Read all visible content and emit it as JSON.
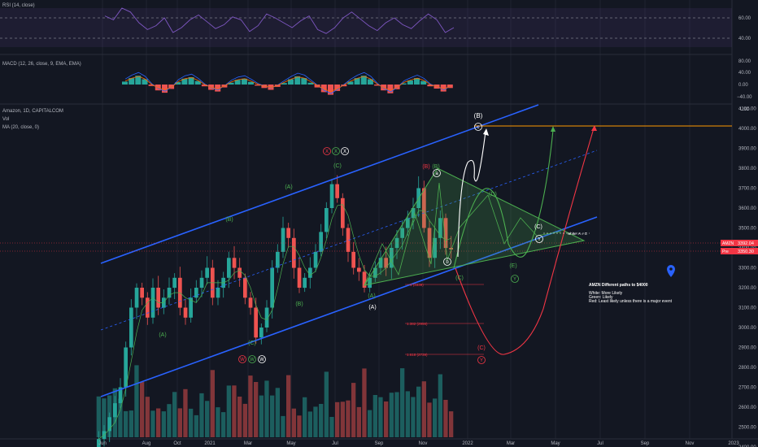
{
  "panes": {
    "rsi": {
      "label": "RSI (14, close)",
      "ticks": [
        "60.00",
        "40.00"
      ]
    },
    "macd": {
      "label": "MACD (12, 26, close, 9, EMA, EMA)",
      "ticks": [
        "80.00",
        "40.00",
        "0.00",
        "−40.00"
      ]
    },
    "main": {
      "title": "Amazon, 1D, CAPITALCOM",
      "sub1": "Vol",
      "sub2": "MA (20, close, 0)",
      "ticks": [
        "4100.00",
        "4000.00",
        "3900.00",
        "3800.00",
        "3700.00",
        "3600.00",
        "3500.00",
        "3400.00",
        "3300.00",
        "3200.00",
        "3100.00",
        "3000.00",
        "2900.00",
        "2800.00",
        "2700.00",
        "2600.00",
        "2500.00",
        "2400.00"
      ],
      "y_unit": "USD"
    }
  },
  "price_tags": [
    {
      "label": "AMZN",
      "value": "3392.04",
      "color": "#f23645"
    },
    {
      "label": "Pre",
      "value": "3350.30",
      "color": "#f23645"
    }
  ],
  "x_axis": [
    "Jun",
    "Aug",
    "Oct",
    "2021",
    "Mar",
    "May",
    "Jul",
    "Sep",
    "Nov",
    "2022",
    "Mar",
    "May",
    "Jul",
    "Sep",
    "Nov",
    "2023"
  ],
  "annotation": {
    "title": "AMZN Different paths to $4000",
    "lines": [
      "White: More Likely",
      "Green: Likely",
      "Red:  Least likely unless there is a major event"
    ]
  },
  "white_label": "white: A = C",
  "fib_labels": [
    "1 (3339)",
    "1.382 (2956)",
    "1.618 (2739)"
  ],
  "wave_labels": {
    "A_g1": "(A)",
    "B_g1": "(B)",
    "C_g1": "(C)",
    "A_g2": "(A)",
    "A_w": "(A)",
    "A_g3": "(A)",
    "B_g2": "(B)",
    "C_g2": "(C)",
    "B_r": "(B)",
    "B_g3": "(B)",
    "a": "a",
    "b": "b",
    "C_g3": "(C)",
    "D_g": "(D)",
    "E_g": "(E)",
    "C_w": "(C)",
    "Y_w": "Y",
    "Y_g": "Y",
    "C_r": "(C)",
    "Y_r": "Y",
    "B_top": "(B)",
    "c_top": "c",
    "W_r": "W",
    "W_g": "W",
    "W_w": "W",
    "X_r": "X",
    "X_g": "X",
    "X_w": "X"
  },
  "colors": {
    "background": "#131722",
    "channel": "#2962ff",
    "green": "#4caf50",
    "red": "#f23645",
    "white": "#ffffff",
    "rsi": "#7e57c2",
    "target": "#ff9800"
  },
  "chart_data": [
    {
      "type": "line",
      "title": "RSI (14, close)",
      "series": [
        {
          "name": "RSI",
          "values": [
            62,
            58,
            70,
            66,
            55,
            48,
            52,
            60,
            45,
            50,
            58,
            63,
            56,
            49,
            53,
            61,
            58,
            46,
            52,
            64,
            60,
            55,
            50,
            57,
            62,
            48,
            44,
            50,
            60,
            66,
            59,
            52,
            47,
            55,
            60,
            53,
            49,
            57,
            64,
            58,
            45,
            50
          ]
        }
      ],
      "ylim": [
        30,
        75
      ]
    },
    {
      "type": "bar",
      "title": "MACD (12, 26, close, 9, EMA, EMA)",
      "series": [
        {
          "name": "Histogram",
          "values": [
            10,
            22,
            30,
            18,
            -5,
            -20,
            -28,
            -15,
            8,
            20,
            25,
            12,
            -6,
            -18,
            -24,
            -10,
            6,
            16,
            20,
            9,
            -4,
            -12,
            -18,
            -8,
            5,
            18,
            28,
            22,
            6,
            -10,
            -26,
            -35,
            -22,
            -6,
            10,
            22,
            30,
            18,
            -4,
            -20,
            -30,
            -16,
            4,
            14,
            22,
            12,
            -6,
            -14,
            -24,
            -12
          ]
        }
      ],
      "ylim": [
        -50,
        90
      ]
    },
    {
      "type": "bar",
      "title": "Amazon, 1D, CAPITALCOM",
      "ylabel": "USD",
      "series": [
        {
          "name": "Close",
          "values": [
            2440,
            2480,
            2550,
            2620,
            2700,
            2900,
            3100,
            3200,
            3150,
            3050,
            3200,
            3100,
            3150,
            3200,
            3250,
            3100,
            3050,
            3150,
            3200,
            3250,
            3300,
            3150,
            3200,
            3250,
            3350,
            3300,
            3250,
            3150,
            3100,
            2950,
            3000,
            3100,
            3300,
            3380,
            3500,
            3450,
            3300,
            3200,
            3250,
            3300,
            3380,
            3480,
            3600,
            3720,
            3650,
            3500,
            3380,
            3300,
            3280,
            3200,
            3250,
            3300,
            3350,
            3300,
            3400,
            3450,
            3500,
            3550,
            3600,
            3700,
            3500,
            3350,
            3450,
            3550,
            3400,
            3392
          ]
        }
      ],
      "ylim": [
        2350,
        4150
      ]
    }
  ]
}
